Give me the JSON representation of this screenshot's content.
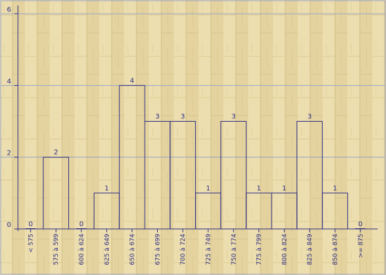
{
  "colors": {
    "background": "#e8d9a6",
    "plank_light": "#ecdeae",
    "plank_dark": "#ddc98e",
    "grid": "#9aa6c8",
    "axis": "#2f2f86",
    "bar_stroke": "#2f2f86",
    "text": "#2f2f86"
  },
  "chart_data": {
    "type": "bar",
    "title": "",
    "xlabel": "",
    "ylabel": "",
    "ylim": [
      0,
      6
    ],
    "yticks": [
      "0",
      "2",
      "4",
      "6"
    ],
    "grid": true,
    "bar_fill": "none",
    "categories": [
      "< 575",
      "575 à 599",
      "600 à 624",
      "625 à 649",
      "650 à 674",
      "675 à 699",
      "700 à 724",
      "725 à 749",
      "750 à 774",
      "775 à 799",
      "800 à 824",
      "825 à 849",
      "850 à 874",
      ">= 875"
    ],
    "values": [
      0,
      2,
      0,
      1,
      4,
      3,
      3,
      1,
      3,
      1,
      1,
      3,
      1,
      0
    ],
    "value_labels": [
      "0",
      "2",
      "0",
      "1",
      "4",
      "3",
      "3",
      "1",
      "3",
      "1",
      "1",
      "3",
      "1",
      "0"
    ]
  }
}
